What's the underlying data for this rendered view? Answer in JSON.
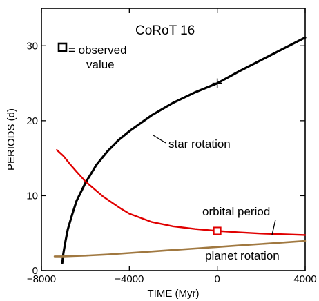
{
  "chart_data": {
    "type": "line",
    "title": "CoRoT 16",
    "xlabel": "TIME (Myr)",
    "ylabel": "PERIODS (d)",
    "xlim": [
      -8000,
      4000
    ],
    "ylim": [
      0,
      35
    ],
    "xticks": [
      -8000,
      -4000,
      0,
      4000
    ],
    "yticks": [
      0,
      10,
      20,
      30
    ],
    "xtick_labels": [
      "−8000",
      "−4000",
      "0",
      "4000"
    ],
    "ytick_labels": [
      "0",
      "10",
      "20",
      "30"
    ],
    "grid": false,
    "series": [
      {
        "name": "star rotation",
        "color": "#000000",
        "x": [
          -7050,
          -7000,
          -6900,
          -6800,
          -6600,
          -6400,
          -6000,
          -5500,
          -5000,
          -4500,
          -4000,
          -3000,
          -2000,
          -1000,
          0,
          1000,
          2000,
          3000,
          4000
        ],
        "y": [
          1.0,
          2.3,
          4.0,
          5.5,
          7.5,
          9.3,
          11.7,
          14.1,
          15.9,
          17.4,
          18.6,
          20.7,
          22.4,
          23.8,
          25.0,
          26.6,
          28.1,
          29.6,
          31.1
        ]
      },
      {
        "name": "orbital period",
        "color": "#e00000",
        "x": [
          -7300,
          -7000,
          -6700,
          -6400,
          -6000,
          -5600,
          -5200,
          -4800,
          -4400,
          -4000,
          -3000,
          -2000,
          -1000,
          0,
          1000,
          2000,
          3000,
          4000
        ],
        "y": [
          16.1,
          15.3,
          14.2,
          13.2,
          11.9,
          10.9,
          9.9,
          9.1,
          8.3,
          7.6,
          6.5,
          5.9,
          5.55,
          5.3,
          5.1,
          4.95,
          4.85,
          4.75
        ]
      },
      {
        "name": "planet rotation",
        "color": "#a07840",
        "x": [
          -7400,
          -7000,
          -6500,
          -6000,
          -5000,
          -4000,
          -3000,
          -2000,
          -1000,
          0,
          1000,
          2000,
          3000,
          4000
        ],
        "y": [
          1.9,
          1.9,
          1.95,
          2.0,
          2.15,
          2.35,
          2.55,
          2.75,
          2.95,
          3.15,
          3.35,
          3.55,
          3.75,
          3.95
        ]
      }
    ],
    "observed": [
      {
        "name": "star rotation observed",
        "x": 0,
        "y": 25.0,
        "marker": "plus",
        "color": "#000000"
      },
      {
        "name": "orbital period observed",
        "x": 0,
        "y": 5.3,
        "marker": "square",
        "color": "#e00000"
      }
    ],
    "annotations": {
      "star": "star rotation",
      "orbital": "orbital period",
      "planet": "planet rotation",
      "legend_line1": "= observed",
      "legend_line2": "value"
    }
  }
}
